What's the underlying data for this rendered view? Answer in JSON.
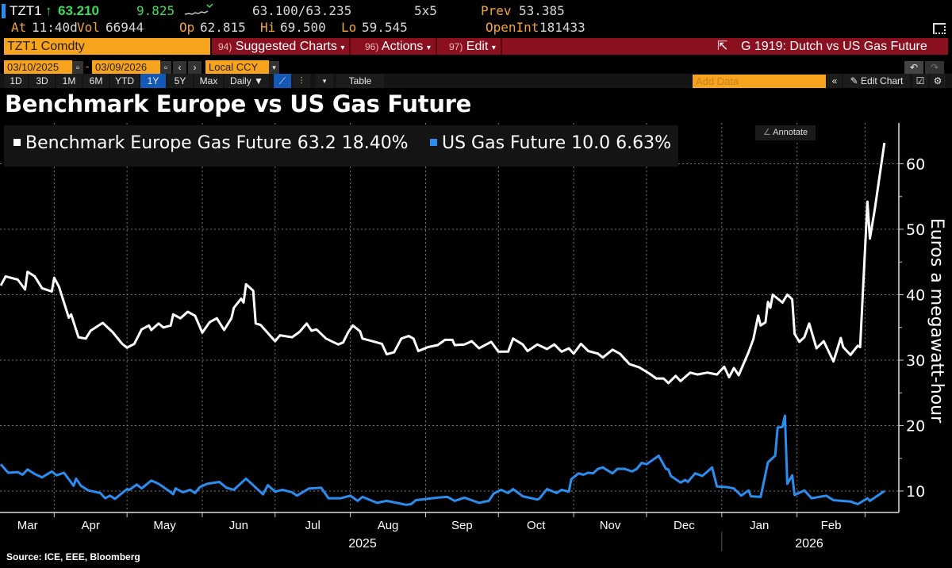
{
  "quote": {
    "ticker": "TZT1",
    "arrow": "↑",
    "last": "63.210",
    "change": "9.825",
    "bid_ask": "63.100/63.235",
    "size": "5x5",
    "prev_label": "Prev",
    "prev": "53.385",
    "at_label": "At",
    "time": "11:40d",
    "vol_label": "Vol",
    "vol": "66944",
    "op_label": "Op",
    "op": "62.815",
    "hi_label": "Hi",
    "hi": "69.500",
    "lo_label": "Lo",
    "lo": "59.545",
    "oi_label": "OpenInt",
    "oi": "181433"
  },
  "toolbar": {
    "security": "TZT1 Comdty",
    "menus": [
      {
        "num": "94)",
        "label": "Suggested Charts"
      },
      {
        "num": "96)",
        "label": "Actions"
      },
      {
        "num": "97)",
        "label": "Edit"
      }
    ],
    "chart_id": "G 1919: Dutch vs US Gas Future",
    "start_date": "03/10/2025",
    "end_date": "03/09/2026",
    "currency": "Local CCY",
    "dash": "-",
    "ranges": [
      "1D",
      "3D",
      "1M",
      "6M",
      "YTD",
      "1Y",
      "5Y",
      "Max"
    ],
    "selected_range": "1Y",
    "frequency": "Daily ▼",
    "table_label": "Table",
    "add_data_placeholder": "Add Data",
    "edit_chart_label": "Edit Chart",
    "annotate_label": "Annotate"
  },
  "icons": [
    "calendar-icon",
    "chevron-left-icon",
    "chevron-right-icon",
    "line-chart-icon",
    "bar-chart-icon",
    "undo-icon",
    "redo-icon",
    "pencil-icon",
    "gear-icon",
    "external-link-icon",
    "expand-icon"
  ],
  "chart_data": {
    "type": "line",
    "title": "Benchmark Europe vs US Gas Future",
    "ylabel": "Euros a megawatt-hour",
    "ylim": [
      5,
      65
    ],
    "yticks": [
      10,
      20,
      30,
      40,
      50,
      60
    ],
    "xlim": [
      "2025-03-10",
      "2026-03-09"
    ],
    "xticks": [
      "Mar",
      "Apr",
      "May",
      "Jun",
      "Jul",
      "Aug",
      "Sep",
      "Oct",
      "Nov",
      "Dec",
      "Jan",
      "Feb"
    ],
    "years": [
      "2025",
      "2026"
    ],
    "grid": true,
    "legend_position": "top-left",
    "source": "Source: ICE, EEE, Bloomberg",
    "series": [
      {
        "name": "Benchmark Europe Gas Future",
        "last": "63.2",
        "pct": "18.40%",
        "color": "#ffffff",
        "points": [
          [
            "2025-03-10",
            41.4
          ],
          [
            "2025-03-12",
            42.8
          ],
          [
            "2025-03-17",
            42.3
          ],
          [
            "2025-03-20",
            40.8
          ],
          [
            "2025-03-21",
            43.5
          ],
          [
            "2025-03-24",
            42.8
          ],
          [
            "2025-03-27",
            41.0
          ],
          [
            "2025-03-31",
            40.5
          ],
          [
            "2025-04-01",
            42.6
          ],
          [
            "2025-04-03",
            41.2
          ],
          [
            "2025-04-07",
            36.5
          ],
          [
            "2025-04-08",
            37.0
          ],
          [
            "2025-04-11",
            33.5
          ],
          [
            "2025-04-14",
            33.3
          ],
          [
            "2025-04-16",
            34.5
          ],
          [
            "2025-04-21",
            35.7
          ],
          [
            "2025-04-25",
            34.3
          ],
          [
            "2025-04-29",
            32.5
          ],
          [
            "2025-05-01",
            31.9
          ],
          [
            "2025-05-04",
            32.5
          ],
          [
            "2025-05-07",
            34.7
          ],
          [
            "2025-05-10",
            35.3
          ],
          [
            "2025-05-11",
            34.6
          ],
          [
            "2025-05-14",
            35.6
          ],
          [
            "2025-05-16",
            35.0
          ],
          [
            "2025-05-19",
            35.3
          ],
          [
            "2025-05-20",
            37.0
          ],
          [
            "2025-05-23",
            36.4
          ],
          [
            "2025-05-26",
            37.4
          ],
          [
            "2025-05-29",
            36.8
          ],
          [
            "2025-06-01",
            34.2
          ],
          [
            "2025-06-04",
            35.8
          ],
          [
            "2025-06-07",
            36.4
          ],
          [
            "2025-06-10",
            34.6
          ],
          [
            "2025-06-13",
            36.4
          ],
          [
            "2025-06-14",
            38.0
          ],
          [
            "2025-06-17",
            39.4
          ],
          [
            "2025-06-18",
            38.8
          ],
          [
            "2025-06-19",
            41.6
          ],
          [
            "2025-06-22",
            40.6
          ],
          [
            "2025-06-23",
            35.6
          ],
          [
            "2025-06-25",
            35.4
          ],
          [
            "2025-07-01",
            32.9
          ],
          [
            "2025-07-03",
            33.8
          ],
          [
            "2025-07-08",
            33.5
          ],
          [
            "2025-07-11",
            34.3
          ],
          [
            "2025-07-14",
            35.6
          ],
          [
            "2025-07-16",
            34.5
          ],
          [
            "2025-07-18",
            34.7
          ],
          [
            "2025-07-22",
            33.3
          ],
          [
            "2025-07-27",
            32.4
          ],
          [
            "2025-07-29",
            32.7
          ],
          [
            "2025-07-31",
            34.2
          ],
          [
            "2025-08-02",
            35.3
          ],
          [
            "2025-08-05",
            34.4
          ],
          [
            "2025-08-06",
            33.3
          ],
          [
            "2025-08-10",
            32.9
          ],
          [
            "2025-08-14",
            32.5
          ],
          [
            "2025-08-16",
            30.9
          ],
          [
            "2025-08-19",
            31.2
          ],
          [
            "2025-08-22",
            33.3
          ],
          [
            "2025-08-25",
            33.7
          ],
          [
            "2025-08-27",
            33.3
          ],
          [
            "2025-08-29",
            31.4
          ],
          [
            "2025-09-02",
            32.0
          ],
          [
            "2025-09-06",
            32.3
          ],
          [
            "2025-09-09",
            33.1
          ],
          [
            "2025-09-12",
            33.1
          ],
          [
            "2025-09-13",
            32.3
          ],
          [
            "2025-09-17",
            32.4
          ],
          [
            "2025-09-20",
            32.9
          ],
          [
            "2025-09-23",
            31.8
          ],
          [
            "2025-09-28",
            32.8
          ],
          [
            "2025-10-01",
            31.3
          ],
          [
            "2025-10-05",
            31.3
          ],
          [
            "2025-10-07",
            33.3
          ],
          [
            "2025-10-11",
            32.4
          ],
          [
            "2025-10-13",
            31.4
          ],
          [
            "2025-10-17",
            32.4
          ],
          [
            "2025-10-21",
            31.7
          ],
          [
            "2025-10-24",
            32.4
          ],
          [
            "2025-10-27",
            31.3
          ],
          [
            "2025-10-30",
            31.8
          ],
          [
            "2025-11-01",
            31.0
          ],
          [
            "2025-11-04",
            32.5
          ],
          [
            "2025-11-07",
            31.4
          ],
          [
            "2025-11-11",
            31.0
          ],
          [
            "2025-11-13",
            30.4
          ],
          [
            "2025-11-17",
            31.6
          ],
          [
            "2025-11-20",
            31.0
          ],
          [
            "2025-11-24",
            29.4
          ],
          [
            "2025-11-28",
            28.9
          ],
          [
            "2025-12-02",
            28.0
          ],
          [
            "2025-12-05",
            27.2
          ],
          [
            "2025-12-08",
            27.2
          ],
          [
            "2025-12-10",
            26.5
          ],
          [
            "2025-12-13",
            27.6
          ],
          [
            "2025-12-15",
            26.8
          ],
          [
            "2025-12-19",
            28.1
          ],
          [
            "2025-12-22",
            27.8
          ],
          [
            "2025-12-26",
            28.1
          ],
          [
            "2025-12-30",
            27.8
          ],
          [
            "2026-01-02",
            29.0
          ],
          [
            "2026-01-04",
            27.4
          ],
          [
            "2026-01-06",
            28.8
          ],
          [
            "2026-01-08",
            27.7
          ],
          [
            "2026-01-09",
            28.6
          ],
          [
            "2026-01-12",
            31.2
          ],
          [
            "2026-01-14",
            33.2
          ],
          [
            "2026-01-16",
            36.8
          ],
          [
            "2026-01-17",
            35.3
          ],
          [
            "2026-01-19",
            35.8
          ],
          [
            "2026-01-20",
            38.9
          ],
          [
            "2026-01-21",
            38.0
          ],
          [
            "2026-01-22",
            40.0
          ],
          [
            "2026-01-26",
            38.8
          ],
          [
            "2026-01-28",
            40.0
          ],
          [
            "2026-01-30",
            39.3
          ],
          [
            "2026-01-31",
            34.0
          ],
          [
            "2026-02-02",
            32.8
          ],
          [
            "2026-02-04",
            33.5
          ],
          [
            "2026-02-06",
            35.6
          ],
          [
            "2026-02-09",
            31.8
          ],
          [
            "2026-02-12",
            32.9
          ],
          [
            "2026-02-16",
            29.8
          ],
          [
            "2026-02-19",
            33.4
          ],
          [
            "2026-02-20",
            32.0
          ],
          [
            "2026-02-23",
            30.8
          ],
          [
            "2026-02-26",
            32.2
          ],
          [
            "2026-02-27",
            32.0
          ],
          [
            "2026-03-02",
            54.2
          ],
          [
            "2026-03-03",
            48.6
          ],
          [
            "2026-03-05",
            53.0
          ],
          [
            "2026-03-09",
            63.2
          ]
        ]
      },
      {
        "name": "US Gas Future",
        "last": "10.0",
        "pct": "6.63%",
        "color": "#2a8ef0",
        "points": [
          [
            "2025-03-10",
            14.1
          ],
          [
            "2025-03-13",
            12.8
          ],
          [
            "2025-03-17",
            12.9
          ],
          [
            "2025-03-19",
            12.5
          ],
          [
            "2025-03-21",
            13.3
          ],
          [
            "2025-03-24",
            12.6
          ],
          [
            "2025-03-27",
            12.1
          ],
          [
            "2025-03-31",
            13.0
          ],
          [
            "2025-04-02",
            12.4
          ],
          [
            "2025-04-05",
            12.8
          ],
          [
            "2025-04-09",
            10.8
          ],
          [
            "2025-04-10",
            11.9
          ],
          [
            "2025-04-12",
            10.8
          ],
          [
            "2025-04-15",
            10.1
          ],
          [
            "2025-04-20",
            9.7
          ],
          [
            "2025-04-22",
            8.9
          ],
          [
            "2025-04-24",
            9.3
          ],
          [
            "2025-04-26",
            8.8
          ],
          [
            "2025-05-01",
            10.3
          ],
          [
            "2025-05-02",
            10.2
          ],
          [
            "2025-05-05",
            11.0
          ],
          [
            "2025-05-07",
            10.4
          ],
          [
            "2025-05-11",
            11.6
          ],
          [
            "2025-05-14",
            11.1
          ],
          [
            "2025-05-18",
            10.1
          ],
          [
            "2025-05-20",
            9.5
          ],
          [
            "2025-05-21",
            10.4
          ],
          [
            "2025-05-24",
            9.8
          ],
          [
            "2025-05-27",
            10.2
          ],
          [
            "2025-05-29",
            9.7
          ],
          [
            "2025-05-31",
            10.6
          ],
          [
            "2025-06-03",
            11.1
          ],
          [
            "2025-06-08",
            11.4
          ],
          [
            "2025-06-11",
            10.5
          ],
          [
            "2025-06-14",
            10.2
          ],
          [
            "2025-06-19",
            11.9
          ],
          [
            "2025-06-26",
            9.5
          ],
          [
            "2025-06-28",
            10.9
          ],
          [
            "2025-07-01",
            9.9
          ],
          [
            "2025-07-04",
            10.2
          ],
          [
            "2025-07-08",
            9.8
          ],
          [
            "2025-07-10",
            9.3
          ],
          [
            "2025-07-15",
            10.4
          ],
          [
            "2025-07-20",
            10.5
          ],
          [
            "2025-07-23",
            8.9
          ],
          [
            "2025-07-28",
            8.9
          ],
          [
            "2025-08-01",
            9.3
          ],
          [
            "2025-08-04",
            8.5
          ],
          [
            "2025-08-06",
            9.1
          ],
          [
            "2025-08-12",
            8.2
          ],
          [
            "2025-08-16",
            8.5
          ],
          [
            "2025-08-24",
            7.9
          ],
          [
            "2025-08-26",
            8.0
          ],
          [
            "2025-08-28",
            8.6
          ],
          [
            "2025-09-06",
            9.0
          ],
          [
            "2025-09-10",
            9.1
          ],
          [
            "2025-09-13",
            8.5
          ],
          [
            "2025-09-17",
            9.0
          ],
          [
            "2025-09-23",
            8.2
          ],
          [
            "2025-09-27",
            8.5
          ],
          [
            "2025-09-29",
            9.6
          ],
          [
            "2025-10-02",
            10.2
          ],
          [
            "2025-10-05",
            9.7
          ],
          [
            "2025-10-07",
            10.3
          ],
          [
            "2025-10-11",
            9.2
          ],
          [
            "2025-10-17",
            8.7
          ],
          [
            "2025-10-18",
            8.9
          ],
          [
            "2025-10-21",
            10.3
          ],
          [
            "2025-10-25",
            9.7
          ],
          [
            "2025-10-27",
            10.2
          ],
          [
            "2025-10-30",
            9.9
          ],
          [
            "2025-10-31",
            11.8
          ],
          [
            "2025-11-03",
            12.7
          ],
          [
            "2025-11-05",
            12.5
          ],
          [
            "2025-11-07",
            12.8
          ],
          [
            "2025-11-09",
            12.7
          ],
          [
            "2025-11-11",
            13.4
          ],
          [
            "2025-11-13",
            13.6
          ],
          [
            "2025-11-17",
            12.7
          ],
          [
            "2025-11-19",
            13.4
          ],
          [
            "2025-11-22",
            13.4
          ],
          [
            "2025-11-25",
            13.0
          ],
          [
            "2025-11-27",
            13.4
          ],
          [
            "2025-11-29",
            14.3
          ],
          [
            "2025-12-01",
            14.1
          ],
          [
            "2025-12-06",
            15.4
          ],
          [
            "2025-12-09",
            13.4
          ],
          [
            "2025-12-10",
            13.3
          ],
          [
            "2025-12-11",
            12.3
          ],
          [
            "2025-12-15",
            11.3
          ],
          [
            "2025-12-17",
            11.7
          ],
          [
            "2025-12-18",
            11.4
          ],
          [
            "2025-12-21",
            12.7
          ],
          [
            "2025-12-24",
            12.3
          ],
          [
            "2025-12-28",
            13.6
          ],
          [
            "2025-12-30",
            10.7
          ],
          [
            "2026-01-03",
            10.6
          ],
          [
            "2026-01-06",
            10.4
          ],
          [
            "2026-01-09",
            9.3
          ],
          [
            "2026-01-12",
            10.1
          ],
          [
            "2026-01-13",
            9.2
          ],
          [
            "2026-01-17",
            9.1
          ],
          [
            "2026-01-20",
            14.4
          ],
          [
            "2026-01-23",
            15.4
          ],
          [
            "2026-01-24",
            19.7
          ],
          [
            "2026-01-26",
            19.8
          ],
          [
            "2026-01-27",
            21.5
          ],
          [
            "2026-01-28",
            11.1
          ],
          [
            "2026-01-30",
            12.4
          ],
          [
            "2026-01-31",
            9.4
          ],
          [
            "2026-02-04",
            10.1
          ],
          [
            "2026-02-07",
            8.9
          ],
          [
            "2026-02-13",
            9.3
          ],
          [
            "2026-02-16",
            8.6
          ],
          [
            "2026-02-23",
            8.4
          ],
          [
            "2026-02-26",
            8.0
          ],
          [
            "2026-03-02",
            8.9
          ],
          [
            "2026-03-03",
            8.5
          ],
          [
            "2026-03-09",
            10.0
          ]
        ]
      }
    ]
  }
}
